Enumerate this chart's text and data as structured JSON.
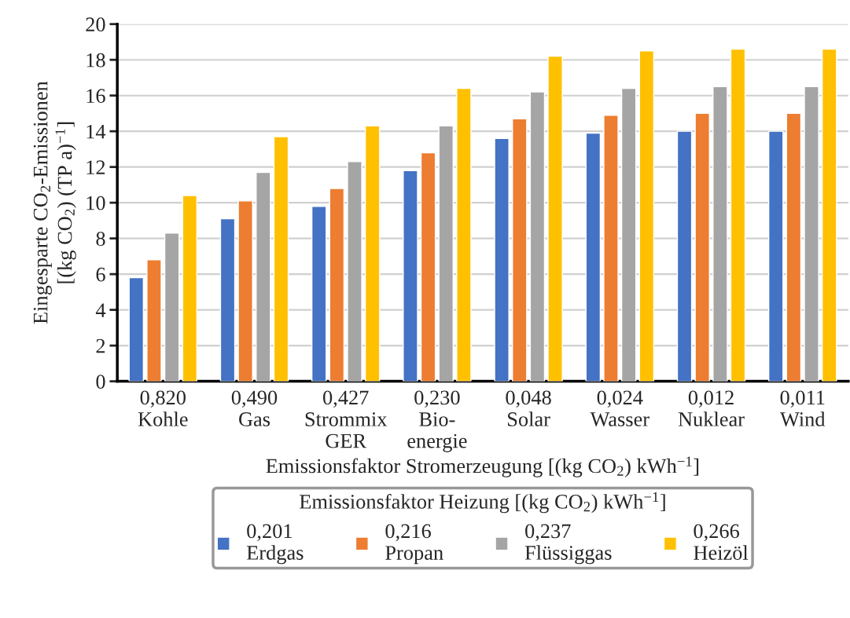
{
  "chart_data": {
    "type": "bar",
    "xlabel": "Emissionsfaktor Stromerzeugung [(kg CO$_{2}$) kWh$^{−1}$]",
    "ylabel": "Eingesparte CO$_{2}$-Emissionen\n[(kg CO$_{2}$) (TP a)$^{−1}$]",
    "legend_title": "Emissionsfaktor Heizung [(kg CO$_{2}$) kWh$^{−1}$]",
    "categories": [
      "0,820\nKohle",
      "0,490\nGas",
      "0,427\nStrommix\nGER",
      "0,230\nBio-\nenergie",
      "0,048\nSolar",
      "0,024\nWasser",
      "0,012\nNuklear",
      "0,011\nWind"
    ],
    "series": [
      {
        "name": "0,201\nErdgas",
        "color": "#4472c4",
        "values": [
          5.8,
          9.1,
          9.8,
          11.8,
          13.6,
          13.9,
          14.0,
          14.0
        ]
      },
      {
        "name": "0,216\nPropan",
        "color": "#ed7d31",
        "values": [
          6.8,
          10.1,
          10.8,
          12.8,
          14.7,
          14.9,
          15.0,
          15.0
        ]
      },
      {
        "name": "0,237\nFlüssiggas",
        "color": "#a5a5a5",
        "values": [
          8.3,
          11.7,
          12.3,
          14.3,
          16.2,
          16.4,
          16.5,
          16.5
        ]
      },
      {
        "name": "0,266\nHeizöl",
        "color": "#ffc000",
        "values": [
          10.4,
          13.7,
          14.3,
          16.4,
          18.2,
          18.5,
          18.6,
          18.6
        ]
      }
    ],
    "ylim": [
      0,
      20
    ],
    "yticks": [
      0,
      2,
      4,
      6,
      8,
      10,
      12,
      14,
      16,
      18,
      20
    ],
    "grid": "y",
    "legend": "bottom"
  }
}
